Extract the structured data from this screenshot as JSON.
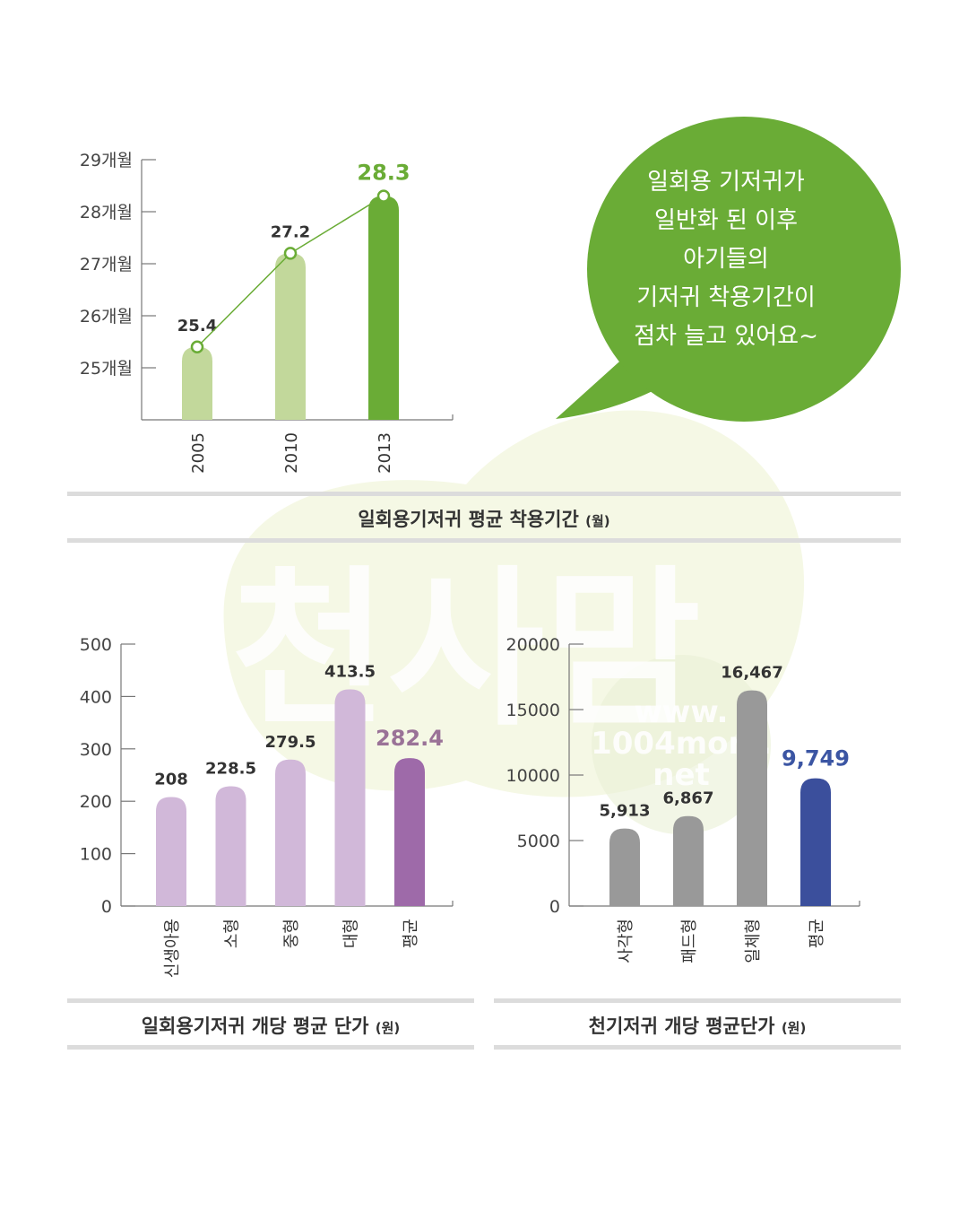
{
  "colors": {
    "green_light": "#c2d89b",
    "green_dark": "#6aac36",
    "bubble": "#6aac36",
    "purple_light": "#d1b8d9",
    "purple_dark": "#9e6aa9",
    "purple_label": "#9a7297",
    "gray_bar": "#999999",
    "blue_bar": "#3b4f9c",
    "blue_label": "#3b55a3",
    "axis": "#777777"
  },
  "watermark": {
    "brand": "천사맘",
    "url_lines": [
      "www.",
      "1004mom.",
      "net"
    ]
  },
  "bubble": {
    "lines": [
      "일회용 기저귀가",
      "일반화 된 이후",
      "아기들의",
      "기저귀 착용기간이",
      "점차 늘고 있어요~"
    ]
  },
  "captions": {
    "chart1": {
      "title": "일회용기저귀 평균 착용기간",
      "unit": "(월)"
    },
    "chart2": {
      "title": "일회용기저귀 개당 평균 단가",
      "unit": "(원)"
    },
    "chart3": {
      "title": "천기저귀 개당 평균단가",
      "unit": "(원)"
    }
  },
  "chart_data": [
    {
      "type": "bar",
      "categories": [
        "2005",
        "2010",
        "2013"
      ],
      "values": [
        25.4,
        27.2,
        28.3
      ],
      "value_labels": [
        "25.4",
        "27.2",
        "28.3"
      ],
      "line_overlay": true,
      "yticks": [
        25,
        26,
        27,
        28,
        29
      ],
      "ytick_labels": [
        "25개월",
        "26개월",
        "27개월",
        "28개월",
        "29개월"
      ],
      "ylim": [
        24,
        29
      ],
      "highlight_index": 2
    },
    {
      "type": "bar",
      "categories": [
        "신생아용",
        "소형",
        "중형",
        "대형",
        "평균"
      ],
      "values": [
        208,
        228.5,
        279.5,
        413.5,
        282.4
      ],
      "value_labels": [
        "208",
        "228.5",
        "279.5",
        "413.5",
        "282.4"
      ],
      "yticks": [
        0,
        100,
        200,
        300,
        400,
        500
      ],
      "ytick_labels": [
        "0",
        "100",
        "200",
        "300",
        "400",
        "500"
      ],
      "ylim": [
        0,
        500
      ],
      "highlight_index": 4
    },
    {
      "type": "bar",
      "categories": [
        "사각형",
        "패드형",
        "일체형",
        "평균"
      ],
      "values": [
        5913,
        6867,
        16467,
        9749
      ],
      "value_labels": [
        "5,913",
        "6,867",
        "16,467",
        "9,749"
      ],
      "yticks": [
        0,
        5000,
        10000,
        15000,
        20000
      ],
      "ytick_labels": [
        "0",
        "5000",
        "10000",
        "15000",
        "20000"
      ],
      "ylim": [
        0,
        20000
      ],
      "highlight_index": 3
    }
  ]
}
